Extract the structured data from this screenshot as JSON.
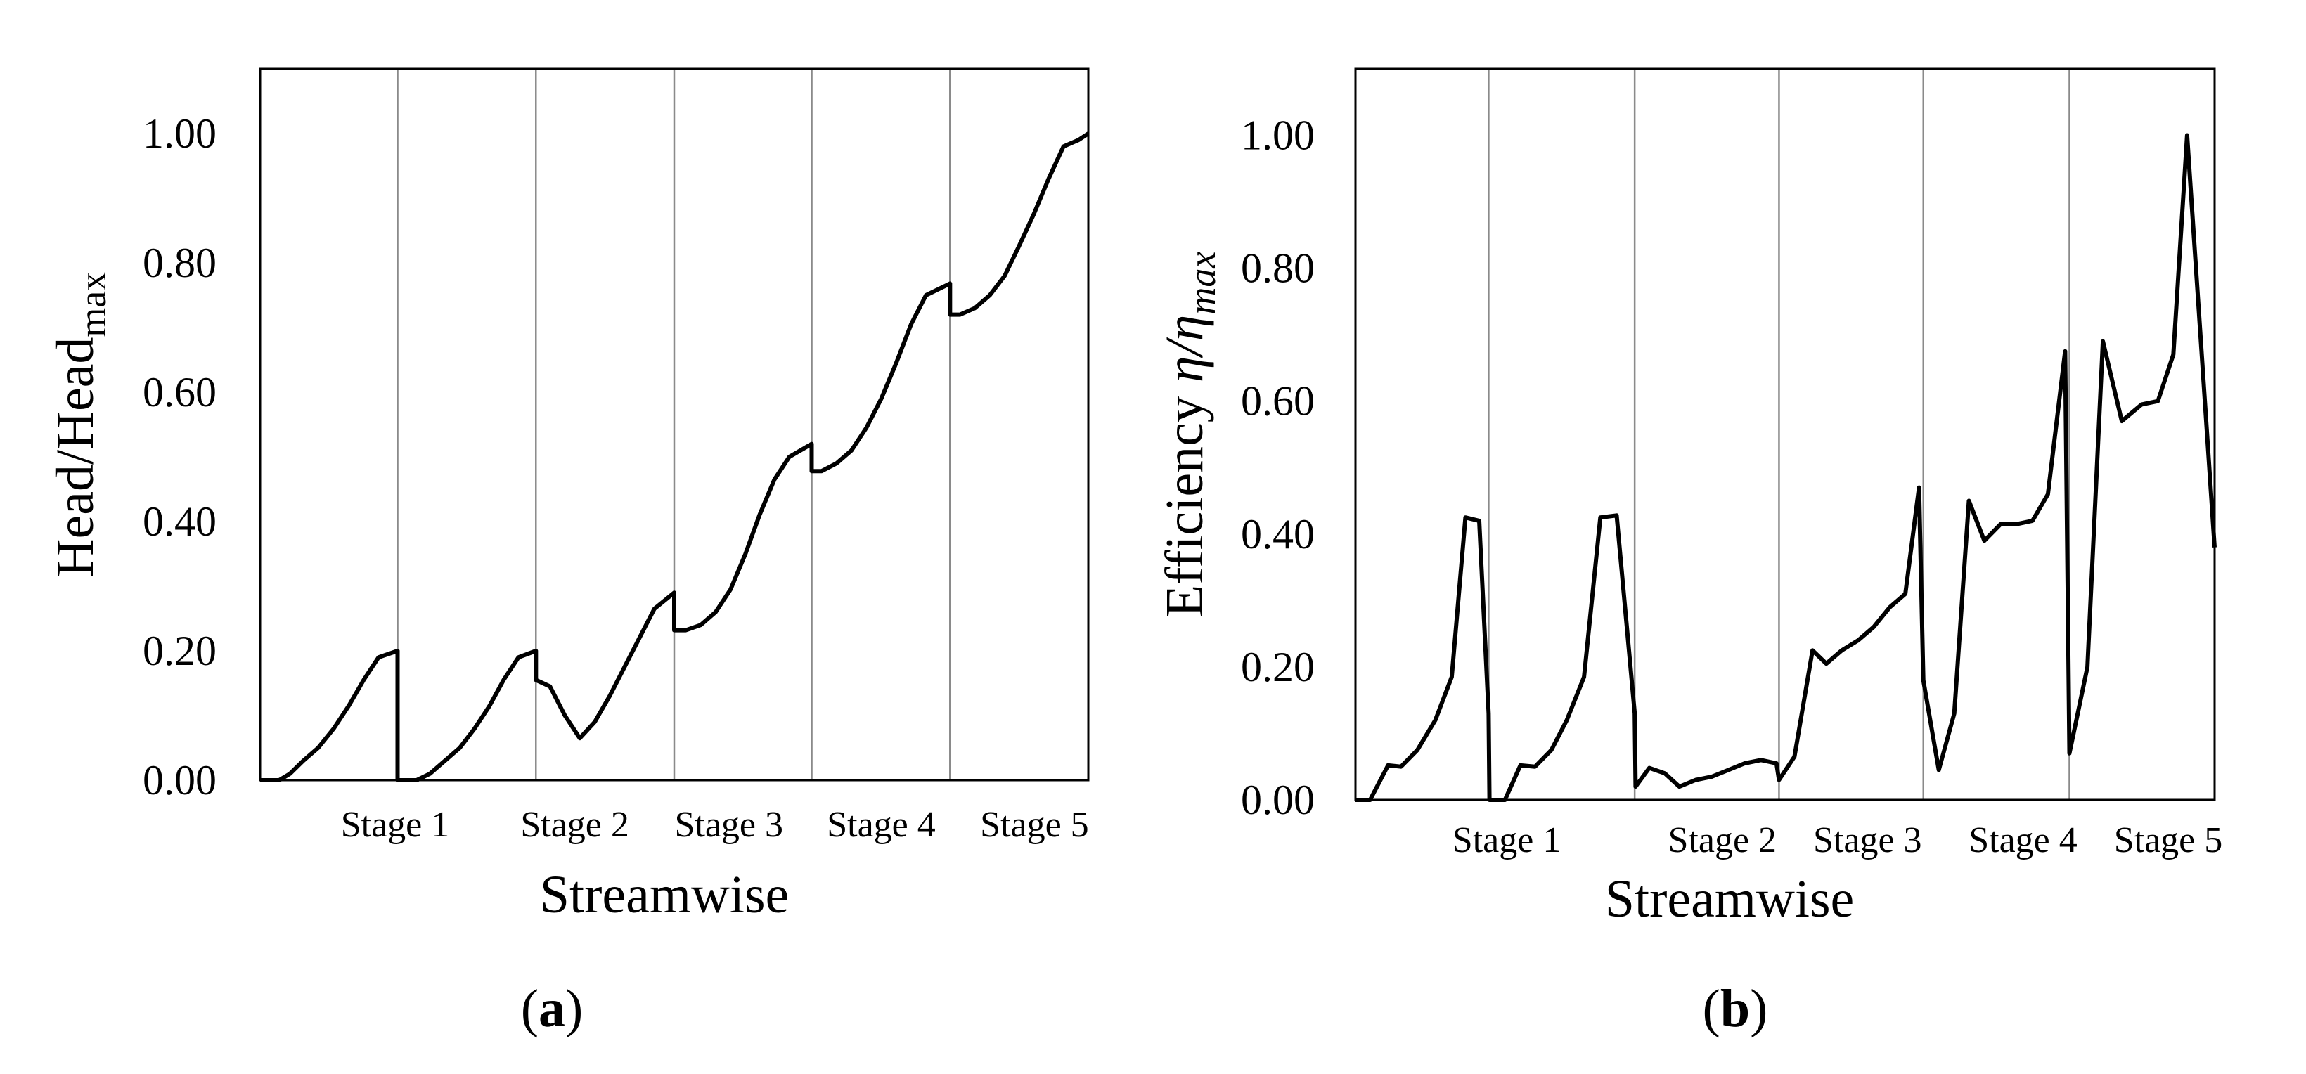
{
  "chart_data": [
    {
      "type": "line",
      "panel_label": "a",
      "title": "",
      "xlabel": "Streamwise",
      "ylabel": {
        "base": "Head/Head",
        "subscript": "max"
      },
      "xlim": [
        0,
        100
      ],
      "ylim": [
        0,
        1.1
      ],
      "yticks": [
        "0.00",
        "0.20",
        "0.40",
        "0.60",
        "0.80",
        "1.00"
      ],
      "ytick_values": [
        0,
        0.2,
        0.4,
        0.6,
        0.8,
        1.0
      ],
      "stage_labels": [
        "Stage 1",
        "Stage 2",
        "Stage 3",
        "Stage 4",
        "Stage 5"
      ],
      "stage_boundaries": [
        16.6,
        33.3,
        50.0,
        66.6,
        83.3
      ],
      "stage_label_positions": [
        16.3,
        38.0,
        56.6,
        75.0,
        93.5
      ],
      "grid": false,
      "series": [
        {
          "name": "Head",
          "x": [
            0,
            2.3,
            3.6,
            5.2,
            7.0,
            8.9,
            10.7,
            12.5,
            14.3,
            16.6,
            16.6,
            18.9,
            20.5,
            22.3,
            24.1,
            25.9,
            27.7,
            29.4,
            31.2,
            33.3,
            33.3,
            35.0,
            36.8,
            38.6,
            40.4,
            42.2,
            44.0,
            45.8,
            47.6,
            50.0,
            50.0,
            51.4,
            53.2,
            55.0,
            56.8,
            58.6,
            60.3,
            62.1,
            63.9,
            66.6,
            66.6,
            67.8,
            69.6,
            71.4,
            73.2,
            75.0,
            76.8,
            78.6,
            80.4,
            83.3,
            83.3,
            84.5,
            86.3,
            88.1,
            89.9,
            91.6,
            93.4,
            95.2,
            97.0,
            98.8,
            100
          ],
          "values": [
            0,
            0.0,
            0.01,
            0.03,
            0.05,
            0.08,
            0.115,
            0.155,
            0.19,
            0.2,
            0.0,
            0.0,
            0.01,
            0.03,
            0.05,
            0.08,
            0.115,
            0.155,
            0.19,
            0.2,
            0.155,
            0.145,
            0.1,
            0.065,
            0.09,
            0.13,
            0.175,
            0.22,
            0.265,
            0.29,
            0.232,
            0.232,
            0.24,
            0.26,
            0.295,
            0.35,
            0.41,
            0.465,
            0.5,
            0.52,
            0.478,
            0.478,
            0.49,
            0.51,
            0.545,
            0.59,
            0.645,
            0.705,
            0.75,
            0.768,
            0.72,
            0.72,
            0.73,
            0.75,
            0.78,
            0.825,
            0.875,
            0.93,
            0.98,
            0.99,
            1.0
          ]
        }
      ]
    },
    {
      "type": "line",
      "panel_label": "b",
      "title": "",
      "xlabel": "Streamwise",
      "ylabel": {
        "base": "Efficiency ",
        "symbol": "η/η",
        "subscript": "max"
      },
      "xlim": [
        0,
        100
      ],
      "ylim": [
        0,
        1.1
      ],
      "yticks": [
        "0.00",
        "0.20",
        "0.40",
        "0.60",
        "0.80",
        "1.00"
      ],
      "ytick_values": [
        0,
        0.2,
        0.4,
        0.6,
        0.8,
        1.0
      ],
      "stage_labels": [
        "Stage 1",
        "Stage 2",
        "Stage 3",
        "Stage 4",
        "Stage 5"
      ],
      "stage_boundaries": [
        15.5,
        32.5,
        49.3,
        66.1,
        83.1
      ],
      "stage_label_positions": [
        17.6,
        42.7,
        59.6,
        77.7,
        94.6
      ],
      "grid": false,
      "series": [
        {
          "name": "Efficiency",
          "x": [
            0,
            1.7,
            3.8,
            5.3,
            7.2,
            9.3,
            11.2,
            12.8,
            14.4,
            15.5,
            15.6,
            17.4,
            19.2,
            20.9,
            22.8,
            24.6,
            26.6,
            28.5,
            30.4,
            32.5,
            32.6,
            34.2,
            36.0,
            37.7,
            39.6,
            41.5,
            43.4,
            45.3,
            47.2,
            49.0,
            49.3,
            51.1,
            53.2,
            54.8,
            56.6,
            58.5,
            60.3,
            62.2,
            64.0,
            65.6,
            66.1,
            67.9,
            69.7,
            71.4,
            73.2,
            75.1,
            77.0,
            78.8,
            80.6,
            82.6,
            83.1,
            85.2,
            87.0,
            89.2,
            91.5,
            93.4,
            95.2,
            96.8,
            100
          ],
          "values": [
            0,
            0.0,
            0.052,
            0.05,
            0.075,
            0.12,
            0.185,
            0.425,
            0.42,
            0.13,
            0.0,
            0.0,
            0.052,
            0.05,
            0.075,
            0.12,
            0.185,
            0.425,
            0.428,
            0.13,
            0.02,
            0.048,
            0.04,
            0.02,
            0.03,
            0.035,
            0.045,
            0.055,
            0.06,
            0.055,
            0.03,
            0.065,
            0.225,
            0.205,
            0.225,
            0.24,
            0.26,
            0.29,
            0.31,
            0.47,
            0.18,
            0.045,
            0.13,
            0.45,
            0.39,
            0.415,
            0.415,
            0.42,
            0.46,
            0.675,
            0.07,
            0.2,
            0.69,
            0.57,
            0.595,
            0.6,
            0.67,
            1.0,
            0.38
          ]
        }
      ]
    }
  ]
}
